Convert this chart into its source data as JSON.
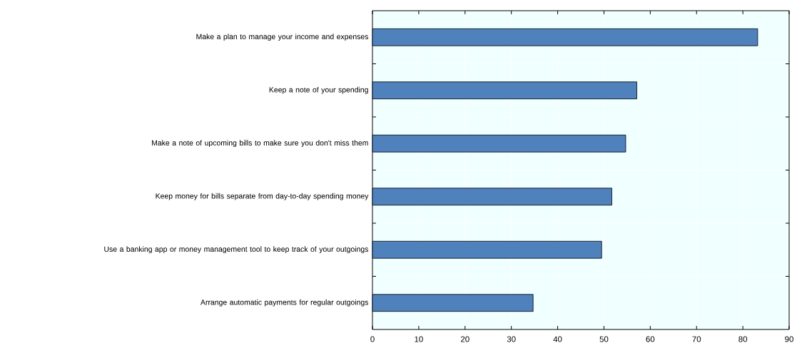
{
  "chart_data": {
    "type": "bar",
    "orientation": "horizontal",
    "categories": [
      "Make a plan to manage your income and expenses",
      "Keep a note of your spending",
      "Make a note of upcoming bills to make sure you don't miss them",
      "Keep money for bills separate from day-to-day spending money",
      "Use a banking  app or money management tool to keep track of your outgoings",
      "Arrange automatic payments for regular outgoings"
    ],
    "values": [
      83.2,
      57.1,
      54.7,
      51.7,
      49.5,
      34.7
    ],
    "color": "#4f81bd",
    "xlim": [
      0,
      90
    ],
    "xticks": [
      0,
      10,
      20,
      30,
      40,
      50,
      60,
      70,
      80,
      90
    ],
    "grid": true
  }
}
